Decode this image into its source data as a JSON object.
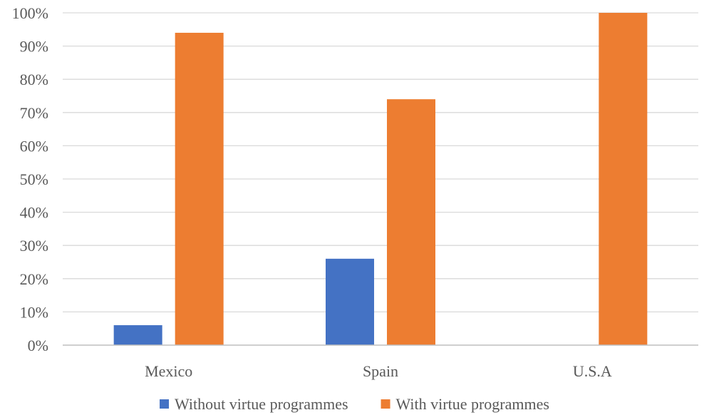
{
  "chart_data": {
    "type": "bar",
    "title": "",
    "xlabel": "",
    "ylabel": "",
    "categories": [
      "Mexico",
      "Spain",
      "U.S.A"
    ],
    "series": [
      {
        "name": "Without virtue programmes",
        "values": [
          6,
          26,
          0
        ],
        "color": "#4472c4"
      },
      {
        "name": "With virtue programmes",
        "values": [
          94,
          74,
          100
        ],
        "color": "#ed7d31"
      }
    ],
    "ylim": [
      0,
      100
    ],
    "yticks": [
      0,
      10,
      20,
      30,
      40,
      50,
      60,
      70,
      80,
      90,
      100
    ],
    "ytick_labels": [
      "0%",
      "10%",
      "20%",
      "30%",
      "40%",
      "50%",
      "60%",
      "70%",
      "80%",
      "90%",
      "100%"
    ],
    "grid": true,
    "legend_position": "bottom"
  }
}
